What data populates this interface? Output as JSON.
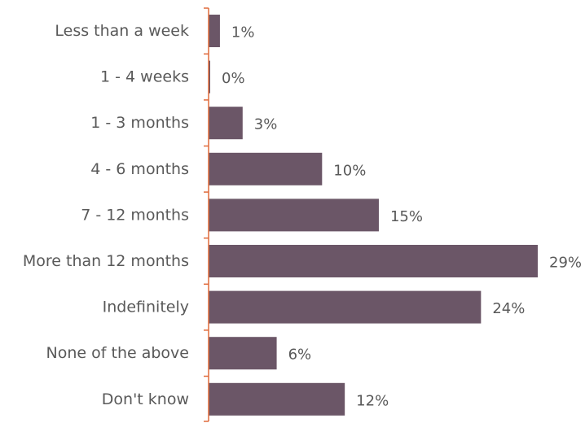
{
  "chart_data": {
    "type": "bar",
    "orientation": "horizontal",
    "categories": [
      "Less than a week",
      "1 - 4 weeks",
      "1 - 3 months",
      "4 - 6 months",
      "7 - 12 months",
      "More than 12 months",
      "Indefinitely",
      "None of the above",
      "Don't know"
    ],
    "values": [
      1,
      0,
      3,
      10,
      15,
      29,
      24,
      6,
      12
    ],
    "value_labels": [
      "1%",
      "0%",
      "3%",
      "10%",
      "15%",
      "29%",
      "24%",
      "6%",
      "12%"
    ],
    "value_unit": "%",
    "title": "",
    "xlabel": "",
    "ylabel": "",
    "xlim": [
      0,
      29
    ],
    "grid": false,
    "legend": "none",
    "colors": {
      "bar": "#6b5667",
      "axis": "#e06b3c",
      "text": "#595959"
    }
  }
}
